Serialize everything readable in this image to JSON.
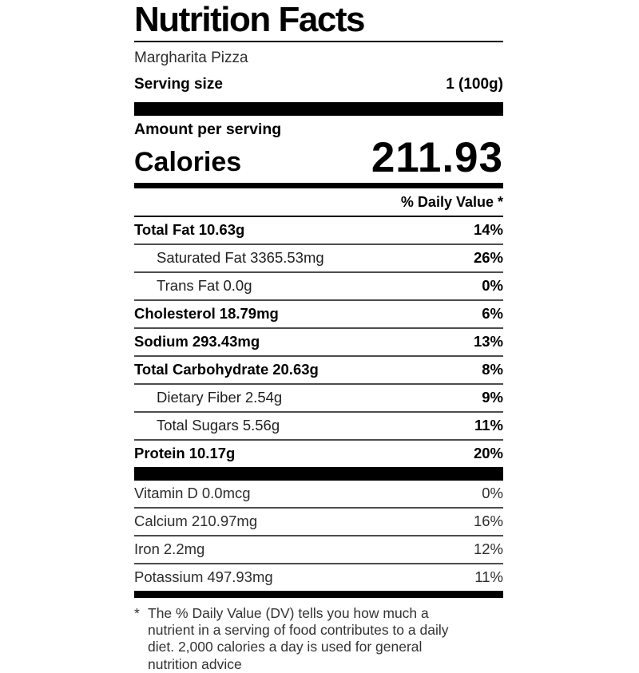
{
  "label": {
    "title": "Nutrition Facts",
    "item_name": "Margharita Pizza",
    "serving_size_label": "Serving size",
    "serving_size_value": "1 (100g)",
    "amount_per_serving": "Amount per serving",
    "calories_label": "Calories",
    "calories_value": "211.93",
    "daily_value_header": "% Daily Value *",
    "nutrients": [
      {
        "name": "Total Fat",
        "amount": "10.63g",
        "dv": "14%",
        "bold": true,
        "indent": false
      },
      {
        "name": "Saturated Fat",
        "amount": "3365.53mg",
        "dv": "26%",
        "bold": false,
        "indent": true
      },
      {
        "name": "Trans Fat",
        "amount": "0.0g",
        "dv": "0%",
        "bold": false,
        "indent": true
      },
      {
        "name": "Cholesterol",
        "amount": "18.79mg",
        "dv": "6%",
        "bold": true,
        "indent": false
      },
      {
        "name": "Sodium",
        "amount": "293.43mg",
        "dv": "13%",
        "bold": true,
        "indent": false
      },
      {
        "name": "Total Carbohydrate",
        "amount": "20.63g",
        "dv": "8%",
        "bold": true,
        "indent": false
      },
      {
        "name": "Dietary Fiber",
        "amount": "2.54g",
        "dv": "9%",
        "bold": false,
        "indent": true
      },
      {
        "name": "Total Sugars",
        "amount": "5.56g",
        "dv": "11%",
        "bold": false,
        "indent": true
      },
      {
        "name": "Protein",
        "amount": "10.17g",
        "dv": "20%",
        "bold": true,
        "indent": false
      }
    ],
    "micronutrients": [
      {
        "name": "Vitamin D",
        "amount": "0.0mcg",
        "dv": "0%"
      },
      {
        "name": "Calcium",
        "amount": "210.97mg",
        "dv": "16%"
      },
      {
        "name": "Iron",
        "amount": "2.2mg",
        "dv": "12%"
      },
      {
        "name": "Potassium",
        "amount": "497.93mg",
        "dv": "11%"
      }
    ],
    "footnote_marker": "*",
    "footnote": "The % Daily Value (DV) tells you how much a nutrient in a serving of food contributes to a daily diet. 2,000 calories a day is used for general nutrition advice"
  },
  "colors": {
    "bar": "#000000",
    "divider": "#4d4d4d",
    "text": "#111111"
  }
}
